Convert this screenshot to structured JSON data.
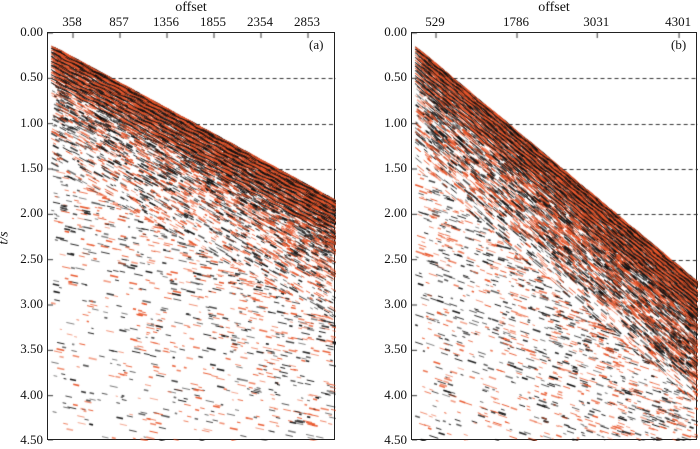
{
  "chart_data": [
    {
      "type": "heatmap",
      "panel_label": "(a)",
      "xlabel": "offset",
      "ylabel": "t/s",
      "xticks": [
        358,
        857,
        1356,
        1855,
        2354,
        2853
      ],
      "yticks": [
        "0.00",
        "0.50",
        "1.00",
        "1.50",
        "2.00",
        "2.50",
        "3.00",
        "3.50",
        "4.00",
        "4.50"
      ],
      "ylim": [
        0,
        4.5
      ],
      "grid": "horizontal dashed",
      "first_arrival_t": [
        0.12,
        1.85
      ],
      "colors": {
        "positive": "#e8552a",
        "negative": "#111111"
      }
    },
    {
      "type": "heatmap",
      "panel_label": "(b)",
      "xlabel": "offset",
      "ylabel": "",
      "xticks": [
        529,
        1786,
        3031,
        4301
      ],
      "yticks": [
        "0.00",
        "0.50",
        "1.00",
        "1.50",
        "2.00",
        "2.50",
        "3.00",
        "3.50",
        "4.00",
        "4.50"
      ],
      "ylim": [
        0,
        4.5
      ],
      "grid": "horizontal dashed",
      "first_arrival_t": [
        0.12,
        2.75
      ],
      "colors": {
        "positive": "#e8552a",
        "negative": "#111111"
      }
    }
  ]
}
